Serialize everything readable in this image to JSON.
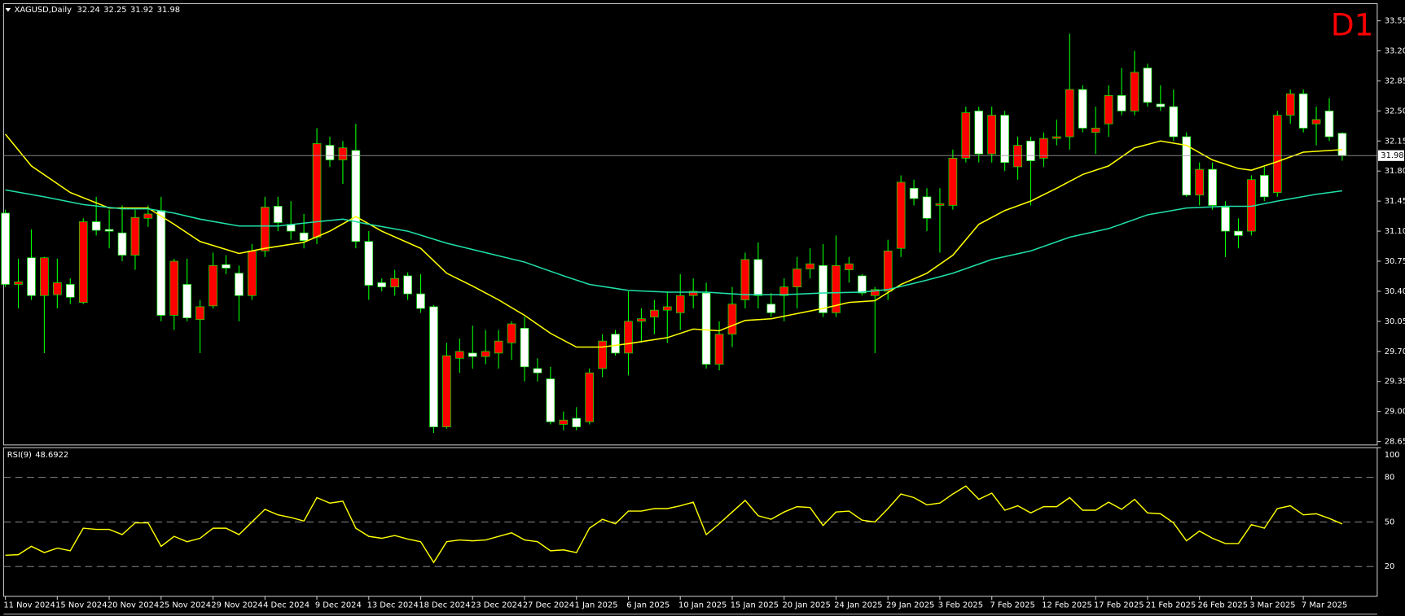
{
  "chart_data": [
    {
      "type": "candlestick",
      "title": "XAGUSD,Daily",
      "timeframe_label": "D1",
      "categories": [
        "11 Nov 2024",
        null,
        null,
        null,
        "15 Nov 2024",
        null,
        null,
        null,
        "20 Nov 2024",
        null,
        null,
        null,
        "25 Nov 2024",
        null,
        null,
        null,
        "29 Nov 2024",
        null,
        null,
        null,
        "4 Dec 2024",
        null,
        null,
        null,
        "9 Dec 2024",
        null,
        null,
        null,
        "13 Dec 2024",
        null,
        null,
        null,
        "18 Dec 2024",
        null,
        null,
        null,
        "23 Dec 2024",
        null,
        null,
        null,
        "27 Dec 2024",
        null,
        null,
        null,
        "1 Jan 2025",
        null,
        null,
        null,
        "6 Jan 2025",
        null,
        null,
        null,
        "10 Jan 2025",
        null,
        null,
        null,
        "15 Jan 2025",
        null,
        null,
        null,
        "20 Jan 2025",
        null,
        null,
        null,
        "24 Jan 2025",
        null,
        null,
        null,
        "29 Jan 2025",
        null,
        null,
        null,
        "3 Feb 2025",
        null,
        null,
        null,
        "7 Feb 2025",
        null,
        null,
        null,
        "12 Feb 2025",
        null,
        null,
        null,
        "17 Feb 2025",
        null,
        null,
        null,
        "21 Feb 2025",
        null,
        null,
        null,
        "26 Feb 2025",
        null,
        null,
        null,
        "3 Mar 2025",
        null,
        null,
        null,
        "7 Mar 2025",
        null,
        null,
        null
      ],
      "open": [
        31.31,
        30.48,
        30.79,
        30.35,
        30.36,
        30.48,
        30.27,
        31.21,
        31.12,
        31.08,
        30.82,
        31.25,
        31.34,
        30.12,
        30.48,
        30.07,
        30.23,
        30.71,
        30.61,
        30.35,
        30.87,
        31.39,
        31.18,
        31.08,
        31.03,
        32.1,
        31.93,
        32.04,
        30.98,
        30.5,
        30.45,
        30.58,
        30.37,
        30.22,
        28.82,
        29.62,
        29.68,
        29.64,
        29.68,
        29.8,
        29.97,
        29.5,
        29.38,
        28.85,
        28.92,
        28.88,
        29.5,
        29.9,
        29.68,
        30.05,
        30.1,
        30.18,
        30.15,
        30.35,
        30.38,
        29.55,
        29.9,
        30.3,
        30.77,
        30.25,
        30.35,
        30.45,
        30.66,
        30.7,
        30.15,
        30.65,
        30.58,
        30.35,
        30.4,
        30.9,
        31.6,
        31.5,
        31.4,
        31.4,
        31.95,
        32.5,
        32.0,
        32.45,
        31.85,
        32.15,
        31.95,
        32.18,
        32.2,
        32.75,
        32.25,
        32.35,
        32.68,
        32.5,
        33.0,
        32.58,
        32.55,
        32.2,
        31.52,
        31.82,
        31.38,
        31.1,
        31.1,
        31.75,
        31.55,
        32.45,
        32.7,
        32.35,
        32.5,
        32.24
      ],
      "high": [
        31.35,
        30.78,
        31.12,
        30.8,
        30.78,
        30.55,
        31.25,
        31.5,
        31.35,
        31.4,
        31.35,
        31.4,
        31.5,
        30.78,
        30.78,
        30.3,
        30.85,
        30.82,
        30.7,
        30.95,
        31.5,
        31.5,
        31.45,
        31.3,
        32.3,
        32.2,
        32.15,
        32.35,
        31.1,
        30.55,
        30.65,
        30.62,
        30.6,
        30.24,
        29.8,
        29.85,
        30.0,
        29.95,
        29.95,
        30.05,
        30.1,
        29.62,
        29.52,
        29.0,
        29.05,
        29.5,
        29.9,
        29.95,
        30.4,
        30.2,
        30.3,
        30.4,
        30.6,
        30.55,
        30.5,
        30.05,
        30.45,
        30.85,
        30.97,
        30.38,
        30.55,
        30.8,
        30.9,
        30.95,
        31.05,
        30.8,
        30.6,
        30.45,
        31.0,
        31.75,
        31.7,
        31.6,
        31.6,
        32.05,
        32.55,
        32.55,
        32.55,
        32.5,
        32.2,
        32.2,
        32.25,
        32.4,
        33.4,
        32.8,
        32.55,
        32.8,
        33.0,
        33.2,
        33.05,
        32.8,
        32.75,
        32.25,
        31.9,
        31.9,
        31.45,
        31.25,
        31.75,
        31.85,
        32.5,
        32.75,
        32.75,
        32.55,
        32.65,
        32.25
      ],
      "low": [
        30.45,
        30.2,
        30.3,
        29.68,
        30.2,
        30.25,
        30.25,
        31.05,
        30.9,
        30.75,
        30.65,
        31.15,
        30.05,
        29.95,
        30.05,
        29.68,
        30.2,
        30.6,
        30.05,
        30.3,
        30.8,
        31.1,
        31.0,
        30.9,
        30.95,
        31.85,
        31.65,
        30.9,
        30.3,
        30.4,
        30.35,
        30.3,
        30.15,
        28.75,
        28.8,
        29.45,
        29.5,
        29.55,
        29.5,
        29.6,
        29.35,
        29.35,
        28.85,
        28.78,
        28.78,
        28.85,
        29.4,
        29.65,
        29.42,
        29.8,
        29.9,
        29.8,
        29.95,
        30.2,
        29.5,
        29.48,
        29.75,
        30.2,
        30.2,
        30.1,
        30.05,
        30.2,
        30.55,
        30.1,
        30.1,
        30.5,
        30.35,
        29.68,
        30.3,
        30.8,
        31.4,
        31.1,
        30.85,
        31.35,
        31.9,
        31.9,
        31.9,
        31.8,
        31.7,
        31.4,
        31.85,
        32.1,
        32.05,
        32.25,
        32.0,
        32.2,
        32.45,
        32.45,
        32.55,
        32.5,
        32.15,
        31.5,
        31.4,
        31.35,
        30.8,
        30.9,
        31.05,
        31.45,
        31.5,
        32.35,
        32.25,
        32.1,
        32.15,
        31.92
      ],
      "close": [
        30.48,
        30.51,
        30.35,
        30.79,
        30.5,
        30.33,
        31.21,
        31.11,
        31.1,
        30.82,
        31.26,
        31.3,
        30.12,
        30.75,
        30.09,
        30.22,
        30.7,
        30.67,
        30.35,
        30.87,
        31.38,
        31.2,
        31.1,
        30.99,
        32.12,
        31.93,
        32.07,
        30.98,
        30.47,
        30.45,
        30.55,
        30.37,
        30.2,
        28.82,
        29.65,
        29.7,
        29.64,
        29.7,
        29.82,
        30.02,
        29.52,
        29.45,
        28.88,
        28.9,
        28.82,
        29.45,
        29.82,
        29.68,
        30.05,
        30.08,
        30.18,
        30.22,
        30.35,
        30.4,
        29.55,
        29.9,
        30.25,
        30.77,
        30.35,
        30.15,
        30.45,
        30.66,
        30.72,
        30.15,
        30.7,
        30.72,
        30.38,
        30.42,
        30.87,
        31.67,
        31.48,
        31.25,
        31.42,
        31.95,
        32.48,
        32.0,
        32.45,
        31.9,
        32.1,
        31.92,
        32.18,
        32.2,
        32.75,
        32.3,
        32.3,
        32.68,
        32.5,
        32.95,
        32.6,
        32.55,
        32.2,
        31.52,
        31.82,
        31.4,
        31.1,
        31.05,
        31.7,
        31.5,
        32.45,
        32.7,
        32.3,
        32.4,
        32.2,
        31.98
      ],
      "up_color": "#ff0000",
      "down_color": "#ffffff",
      "wick_color": "#00ff00",
      "series": [
        {
          "color": "#ffff00",
          "x": [
            0,
            2,
            5,
            8,
            11,
            13,
            15,
            18,
            20,
            23,
            25,
            27,
            29,
            32,
            34,
            36,
            38,
            40,
            42,
            44,
            46,
            48,
            51,
            53,
            55,
            57,
            59,
            61,
            63,
            65,
            67,
            69,
            71,
            73,
            75,
            77,
            79,
            81,
            83,
            85,
            87,
            89,
            91,
            93,
            95,
            96,
            98,
            100,
            103
          ],
          "values": [
            32.23,
            31.86,
            31.55,
            31.37,
            31.37,
            31.18,
            30.98,
            30.84,
            30.9,
            30.97,
            31.1,
            31.27,
            31.1,
            30.9,
            30.61,
            30.46,
            30.3,
            30.12,
            29.91,
            29.75,
            29.75,
            29.79,
            29.86,
            29.96,
            29.94,
            30.06,
            30.08,
            30.14,
            30.2,
            30.27,
            30.29,
            30.48,
            30.61,
            30.82,
            31.18,
            31.34,
            31.45,
            31.6,
            31.76,
            31.86,
            32.07,
            32.15,
            32.1,
            31.93,
            31.83,
            31.81,
            31.91,
            32.02,
            32.05
          ]
        },
        {
          "color": "#20e0a8",
          "x": [
            0,
            3,
            6,
            9,
            11,
            13,
            15,
            18,
            21,
            24,
            26,
            28,
            31,
            34,
            37,
            40,
            43,
            45,
            48,
            51,
            54,
            57,
            60,
            63,
            66,
            68,
            71,
            73,
            76,
            79,
            82,
            85,
            88,
            91,
            94,
            96,
            98,
            101,
            103
          ],
          "values": [
            31.58,
            31.5,
            31.41,
            31.36,
            31.36,
            31.31,
            31.24,
            31.16,
            31.16,
            31.21,
            31.24,
            31.18,
            31.1,
            30.96,
            30.85,
            30.74,
            30.58,
            30.48,
            30.41,
            30.39,
            30.39,
            30.36,
            30.36,
            30.38,
            30.39,
            30.42,
            30.53,
            30.61,
            30.77,
            30.87,
            31.03,
            31.13,
            31.29,
            31.37,
            31.39,
            31.39,
            31.45,
            31.53,
            31.57
          ]
        }
      ],
      "ylim": [
        28.61,
        33.75
      ],
      "yticks": [
        33.55,
        {
          "value": 33.2,
          "label": "33.20"
        },
        32.85,
        {
          "value": 32.5,
          "label": "32.50"
        },
        32.15,
        {
          "value": 31.8,
          "label": "31.80"
        },
        31.45,
        {
          "value": 31.1,
          "label": "31.10"
        },
        30.75,
        {
          "value": 30.4,
          "label": "30.40"
        },
        30.05,
        {
          "value": 29.7,
          "label": "29.70"
        },
        29.35,
        {
          "value": 29,
          "label": "29.00"
        },
        28.65
      ]
    },
    {
      "type": "line",
      "title": "RSI(9)",
      "color": "#ffff00",
      "values": [
        27.6,
        28,
        33.6,
        29.4,
        32.4,
        30.6,
        45.8,
        45,
        45,
        41.5,
        49.4,
        49.4,
        33.6,
        40.3,
        36.7,
        39,
        45.8,
        45.8,
        41.5,
        50,
        58.5,
        54.8,
        53,
        50.6,
        66.4,
        62.7,
        64,
        45.8,
        40.3,
        39,
        40.9,
        38.5,
        36.7,
        22.7,
        36.7,
        37.9,
        37.3,
        37.9,
        40.3,
        42.7,
        37.9,
        36.7,
        30.6,
        31.2,
        29.4,
        45.8,
        51.8,
        48.8,
        57.3,
        57.3,
        59,
        59,
        60.9,
        63.3,
        41.5,
        48.8,
        56.7,
        64.5,
        54.2,
        51.8,
        56.7,
        60.3,
        59.7,
        47.6,
        56.7,
        57.3,
        51.2,
        50,
        59,
        68.8,
        66.4,
        61.5,
        62.7,
        68.8,
        74.2,
        65.2,
        69.4,
        57.9,
        60.9,
        56.1,
        60.3,
        60.3,
        66.4,
        57.9,
        57.9,
        63.3,
        58.5,
        65.2,
        56.1,
        55.5,
        49.4,
        37.3,
        43.9,
        39,
        35.5,
        35.5,
        48.2,
        45.8,
        59,
        60.9,
        54.8,
        55.5,
        52.4,
        48.6922
      ],
      "ylim": [
        0,
        100
      ],
      "yticks": [
        20,
        50,
        80,
        100
      ]
    }
  ]
}
